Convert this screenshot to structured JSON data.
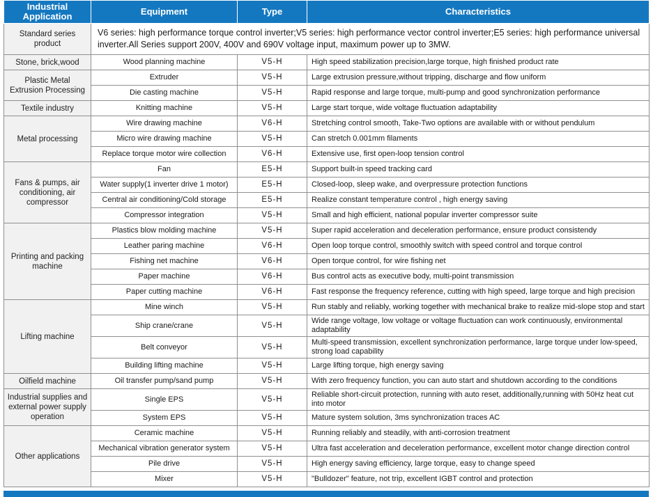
{
  "colors": {
    "header_bg": "#1478C0",
    "header_text": "#FFFFFF",
    "group_cell_bg": "#F1F1F1",
    "border": "#8F8F8F",
    "body_text": "#1A1A1A"
  },
  "table": {
    "headers": [
      "Industrial Application",
      "Equipment",
      "Type",
      "Characteristics"
    ],
    "intro_row": {
      "application": "Standard series product",
      "text": "V6 series: high performance torque control inverter;V5 series: high performance vector control inverter;E5 series: high performance universal inverter.All Series support 200V, 400V and 690V voltage input, maximum power up to 3MW."
    },
    "groups": [
      {
        "application": "Stone, brick,wood",
        "rows": [
          {
            "equipment": "Wood planning machine",
            "type": "V5-H",
            "characteristics": "High speed stabilization precision,large torque, high finished product rate"
          }
        ]
      },
      {
        "application": "Plastic Metal Extrusion Processing",
        "rows": [
          {
            "equipment": "Extruder",
            "type": "V5-H",
            "characteristics": "Large extrusion pressure,without tripping, discharge and flow uniform"
          },
          {
            "equipment": "Die casting machine",
            "type": "V5-H",
            "characteristics": "Rapid response and large torque, multi-pump and good synchronization performance"
          }
        ]
      },
      {
        "application": "Textile industry",
        "rows": [
          {
            "equipment": "Knitting machine",
            "type": "V5-H",
            "characteristics": "Large start torque, wide voltage fluctuation adaptability"
          }
        ]
      },
      {
        "application": "Metal processing",
        "rows": [
          {
            "equipment": "Wire drawing machine",
            "type": "V6-H",
            "characteristics": "Stretching control smooth, Take-Two options are available with or without pendulum"
          },
          {
            "equipment": "Micro wire drawing machine",
            "type": "V5-H",
            "characteristics": "Can stretch 0.001mm filaments"
          },
          {
            "equipment": "Replace torque motor wire collection",
            "type": "V6-H",
            "characteristics": "Extensive use, first open-loop tension control"
          }
        ]
      },
      {
        "application": "Fans & pumps, air conditioning, air compressor",
        "rows": [
          {
            "equipment": "Fan",
            "type": "E5-H",
            "characteristics": "Support built-in speed tracking card"
          },
          {
            "equipment": "Water supply(1 inverter drive 1 motor)",
            "type": "E5-H",
            "characteristics": "Closed-loop, sleep wake, and overpressure protection functions"
          },
          {
            "equipment": "Central air conditioning/Cold storage",
            "type": "E5-H",
            "characteristics": "Realize constant temperature control , high energy saving"
          },
          {
            "equipment": "Compressor integration",
            "type": "V5-H",
            "characteristics": "Small and high efficient, national popular inverter compressor suite"
          }
        ]
      },
      {
        "application": "Printing and packing machine",
        "rows": [
          {
            "equipment": "Plastics blow molding machine",
            "type": "V5-H",
            "characteristics": "Super rapid acceleration and deceleration performance, ensure product consistendy"
          },
          {
            "equipment": "Leather paring machine",
            "type": "V6-H",
            "characteristics": "Open loop torque control, smoothly switch with speed control and torque control"
          },
          {
            "equipment": "Fishing net machine",
            "type": "V6-H",
            "characteristics": "Open torque control, for wire fishing net"
          },
          {
            "equipment": "Paper machine",
            "type": "V6-H",
            "characteristics": "Bus control acts as executive body, multi-point transmission"
          },
          {
            "equipment": "Paper cutting machine",
            "type": "V6-H",
            "characteristics": "Fast response the frequency reference, cutting with high speed, large torque and high precision"
          }
        ]
      },
      {
        "application": "Lifting machine",
        "rows": [
          {
            "equipment": "Mine winch",
            "type": "V5-H",
            "characteristics": "Run stably and reliably, working together with mechanical brake to realize mid-slope stop and start"
          },
          {
            "equipment": "Ship crane/crane",
            "type": "V5-H",
            "characteristics": "Wide range voltage, low voltage or voltage fluctuation can work continuously, environmental adaptability"
          },
          {
            "equipment": "Belt conveyor",
            "type": "V5-H",
            "characteristics": "Multi-speed transmission, excellent synchronization performance, large torque under low-speed, strong load capability"
          },
          {
            "equipment": "Building lifting machine",
            "type": "V5-H",
            "characteristics": "Large lifting torque, high energy saving"
          }
        ]
      },
      {
        "application": "Oilfield machine",
        "rows": [
          {
            "equipment": "Oil transfer pump/sand pump",
            "type": "V5-H",
            "characteristics": "With zero frequency function, you can auto start and shutdown according to the conditions"
          }
        ]
      },
      {
        "application": "Industrial supplies and external power supply operation",
        "rows": [
          {
            "equipment": "Single EPS",
            "type": "V5-H",
            "characteristics": "Reliable short-circuit protection, running with auto reset, additionally,running with 50Hz heat cut into motor"
          },
          {
            "equipment": "System EPS",
            "type": "V5-H",
            "characteristics": "Mature system solution, 3ms synchronization traces AC"
          }
        ]
      },
      {
        "application": "Other applications",
        "rows": [
          {
            "equipment": "Ceramic machine",
            "type": "V5-H",
            "characteristics": "Running reliably and steadily, with anti-corrosion treatment"
          },
          {
            "equipment": "Mechanical vibration generator system",
            "type": "V5-H",
            "characteristics": "Ultra fast acceleration and deceleration performance, excellent motor change direction control"
          },
          {
            "equipment": "Pile drive",
            "type": "V5-H",
            "characteristics": "High energy saving efficiency, large torque, easy to change speed"
          },
          {
            "equipment": "Mixer",
            "type": "V5-H",
            "characteristics": "\"Bulldozer\" feature, not trip, excellent IGBT control and protection"
          }
        ]
      }
    ]
  }
}
